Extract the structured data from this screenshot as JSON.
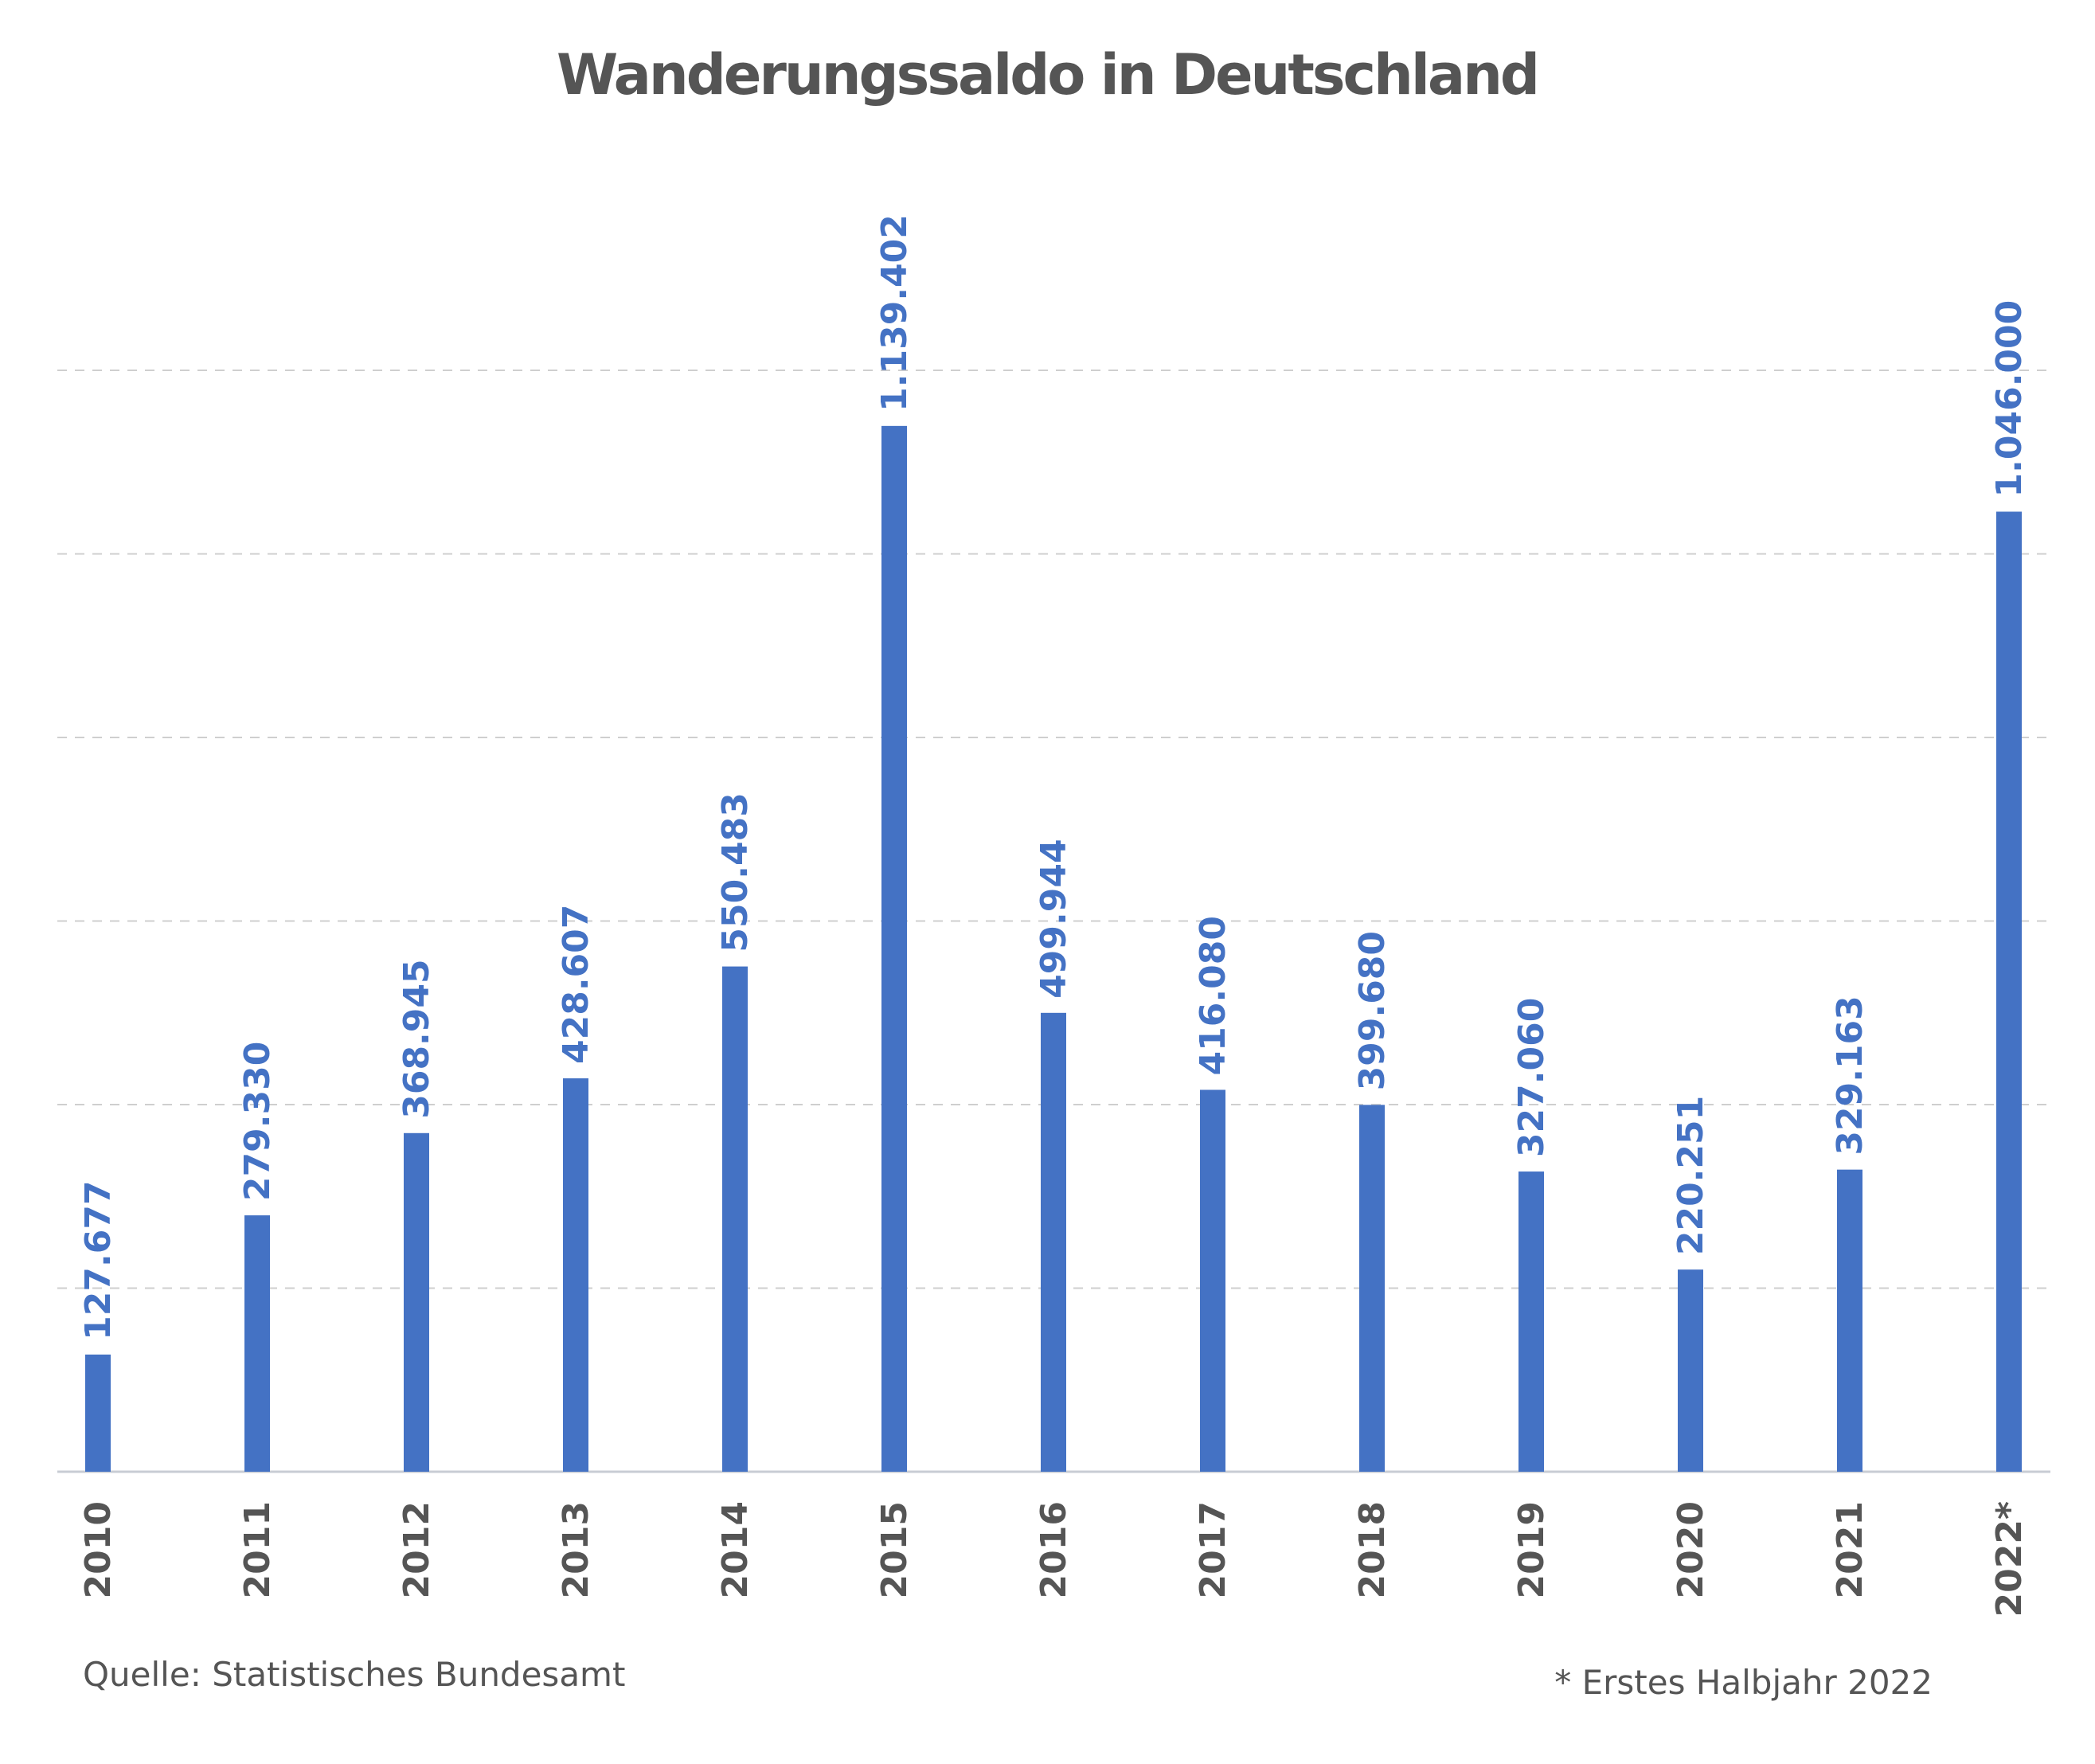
{
  "colors": {
    "bar": "#4472c4",
    "value_label": "#4472c4",
    "text": "#555555",
    "grid": "#cfcfcf",
    "axis": "#c8ccd4"
  },
  "chart_data": {
    "type": "bar",
    "title": "Wanderungssaldo in Deutschland",
    "xlabel": "",
    "ylabel": "",
    "categories": [
      "2010",
      "2011",
      "2012",
      "2013",
      "2014",
      "2015",
      "2016",
      "2017",
      "2018",
      "2019",
      "2020",
      "2021",
      "2022*"
    ],
    "values": [
      127677,
      279330,
      368945,
      428607,
      550483,
      1139402,
      499944,
      416080,
      399680,
      327060,
      220251,
      329163,
      1046000
    ],
    "value_labels": [
      "127.677",
      "279.330",
      "368.945",
      "428.607",
      "550.483",
      "1.139.402",
      "499.944",
      "416.080",
      "399.680",
      "327.060",
      "220.251",
      "329.163",
      "1.046.000"
    ],
    "ylim": [
      0,
      1200000
    ],
    "gridlines": [
      200000,
      400000,
      600000,
      800000,
      1000000,
      1200000
    ],
    "grid": true,
    "legend": "none"
  },
  "footer": {
    "source": "Quelle: Statistisches Bundesamt",
    "note": "* Erstes Halbjahr 2022"
  }
}
